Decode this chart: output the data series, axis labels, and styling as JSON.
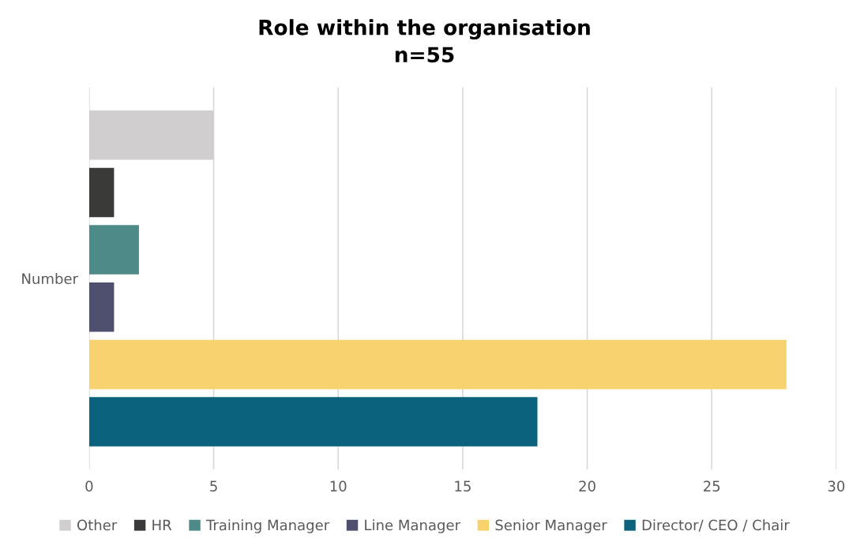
{
  "chart_data": {
    "type": "bar",
    "orientation": "horizontal",
    "title": "Role within the organisation",
    "subtitle": "n=55",
    "categories": [
      "Number"
    ],
    "series": [
      {
        "name": "Other",
        "color": "#d0cece",
        "values": [
          5
        ]
      },
      {
        "name": "HR",
        "color": "#3a3a38",
        "values": [
          1
        ]
      },
      {
        "name": "Training Manager",
        "color": "#4e8b88",
        "values": [
          2
        ]
      },
      {
        "name": "Line Manager",
        "color": "#4f4f70",
        "values": [
          1
        ]
      },
      {
        "name": "Senior Manager",
        "color": "#f8d26e",
        "values": [
          28
        ]
      },
      {
        "name": "Director/ CEO / Chair",
        "color": "#0a627c",
        "values": [
          18
        ]
      }
    ],
    "xlim": [
      0,
      30
    ],
    "xticks": [
      0,
      5,
      10,
      15,
      20,
      25,
      30
    ],
    "grid": "x",
    "legend": "bottom"
  }
}
